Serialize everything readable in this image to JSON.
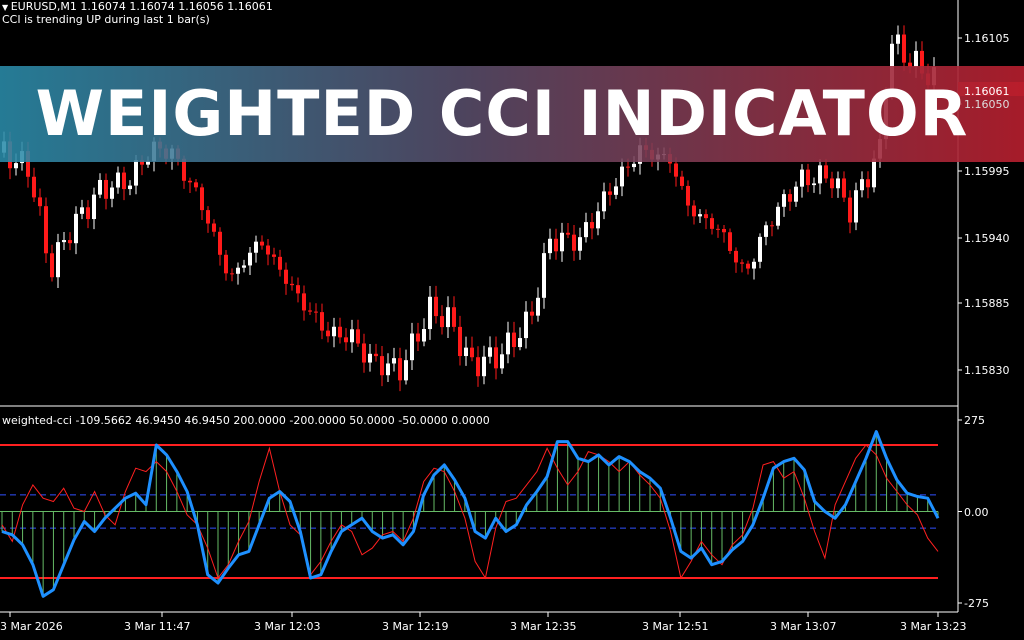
{
  "header": {
    "symbol_line": "EURUSD,M1  1.16074 1.16074 1.16056 1.16061",
    "status": "CCI is trending UP during last 1 bar(s)"
  },
  "banner": {
    "title": "WEIGHTED CCI INDICATOR"
  },
  "price_axis": {
    "labels": [
      "1.16105",
      "1.16061",
      "1.16050",
      "1.15995",
      "1.15940",
      "1.15885",
      "1.15830"
    ],
    "current_price": "1.16061"
  },
  "indicator": {
    "title": "weighted-cci -109.5662 46.9450 46.9450 200.0000 -200.0000 50.0000 -50.0000 0.0000",
    "axis_labels": [
      "275",
      "0.00",
      "-275"
    ],
    "levels": {
      "upper": 200,
      "lower": -200,
      "upper_dash": 50,
      "lower_dash": -50
    },
    "cci_blue": [
      -60,
      -70,
      -100,
      -160,
      -255,
      -235,
      -160,
      -85,
      -30,
      -60,
      -20,
      10,
      40,
      55,
      20,
      200,
      170,
      120,
      60,
      -40,
      -190,
      -215,
      -170,
      -130,
      -120,
      -40,
      40,
      60,
      30,
      -60,
      -200,
      -190,
      -120,
      -60,
      -40,
      -20,
      -60,
      -80,
      -70,
      -100,
      -60,
      50,
      110,
      140,
      95,
      40,
      -60,
      -80,
      -20,
      -60,
      -40,
      20,
      60,
      105,
      210,
      210,
      160,
      150,
      170,
      140,
      165,
      150,
      120,
      100,
      70,
      -20,
      -120,
      -140,
      -110,
      -160,
      -150,
      -115,
      -90,
      -40,
      40,
      130,
      150,
      160,
      125,
      30,
      0,
      -20,
      20,
      90,
      160,
      240,
      160,
      95,
      55,
      45,
      40,
      -20
    ],
    "cci_red": [
      -40,
      -90,
      20,
      80,
      40,
      30,
      70,
      10,
      0,
      60,
      -10,
      -40,
      60,
      130,
      120,
      150,
      120,
      60,
      -10,
      -40,
      -110,
      -200,
      -160,
      -90,
      -30,
      90,
      190,
      60,
      -40,
      -70,
      -190,
      -150,
      -90,
      -40,
      -60,
      -130,
      -110,
      -70,
      -60,
      -90,
      -20,
      90,
      130,
      120,
      60,
      -20,
      -150,
      -200,
      -50,
      30,
      40,
      80,
      120,
      190,
      130,
      80,
      120,
      180,
      170,
      150,
      120,
      150,
      110,
      80,
      40,
      -60,
      -200,
      -150,
      -90,
      -130,
      -160,
      -100,
      -70,
      10,
      140,
      150,
      100,
      120,
      40,
      -60,
      -140,
      20,
      90,
      160,
      200,
      170,
      100,
      60,
      20,
      -10,
      -80,
      -120
    ],
    "color_blue": "#1e90ff",
    "color_red": "#ff2020",
    "color_histogram": "#66bb66"
  },
  "time_axis": {
    "labels": [
      "3 Mar 2026",
      "3 Mar 11:47",
      "3 Mar 12:03",
      "3 Mar 12:19",
      "3 Mar 12:35",
      "3 Mar 12:51",
      "3 Mar 13:07",
      "3 Mar 13:23"
    ]
  },
  "colors": {
    "bull": "#ffffff",
    "bear": "#ff1a1a",
    "level_red": "#ff2020",
    "dash_blue": "#3050ff"
  }
}
